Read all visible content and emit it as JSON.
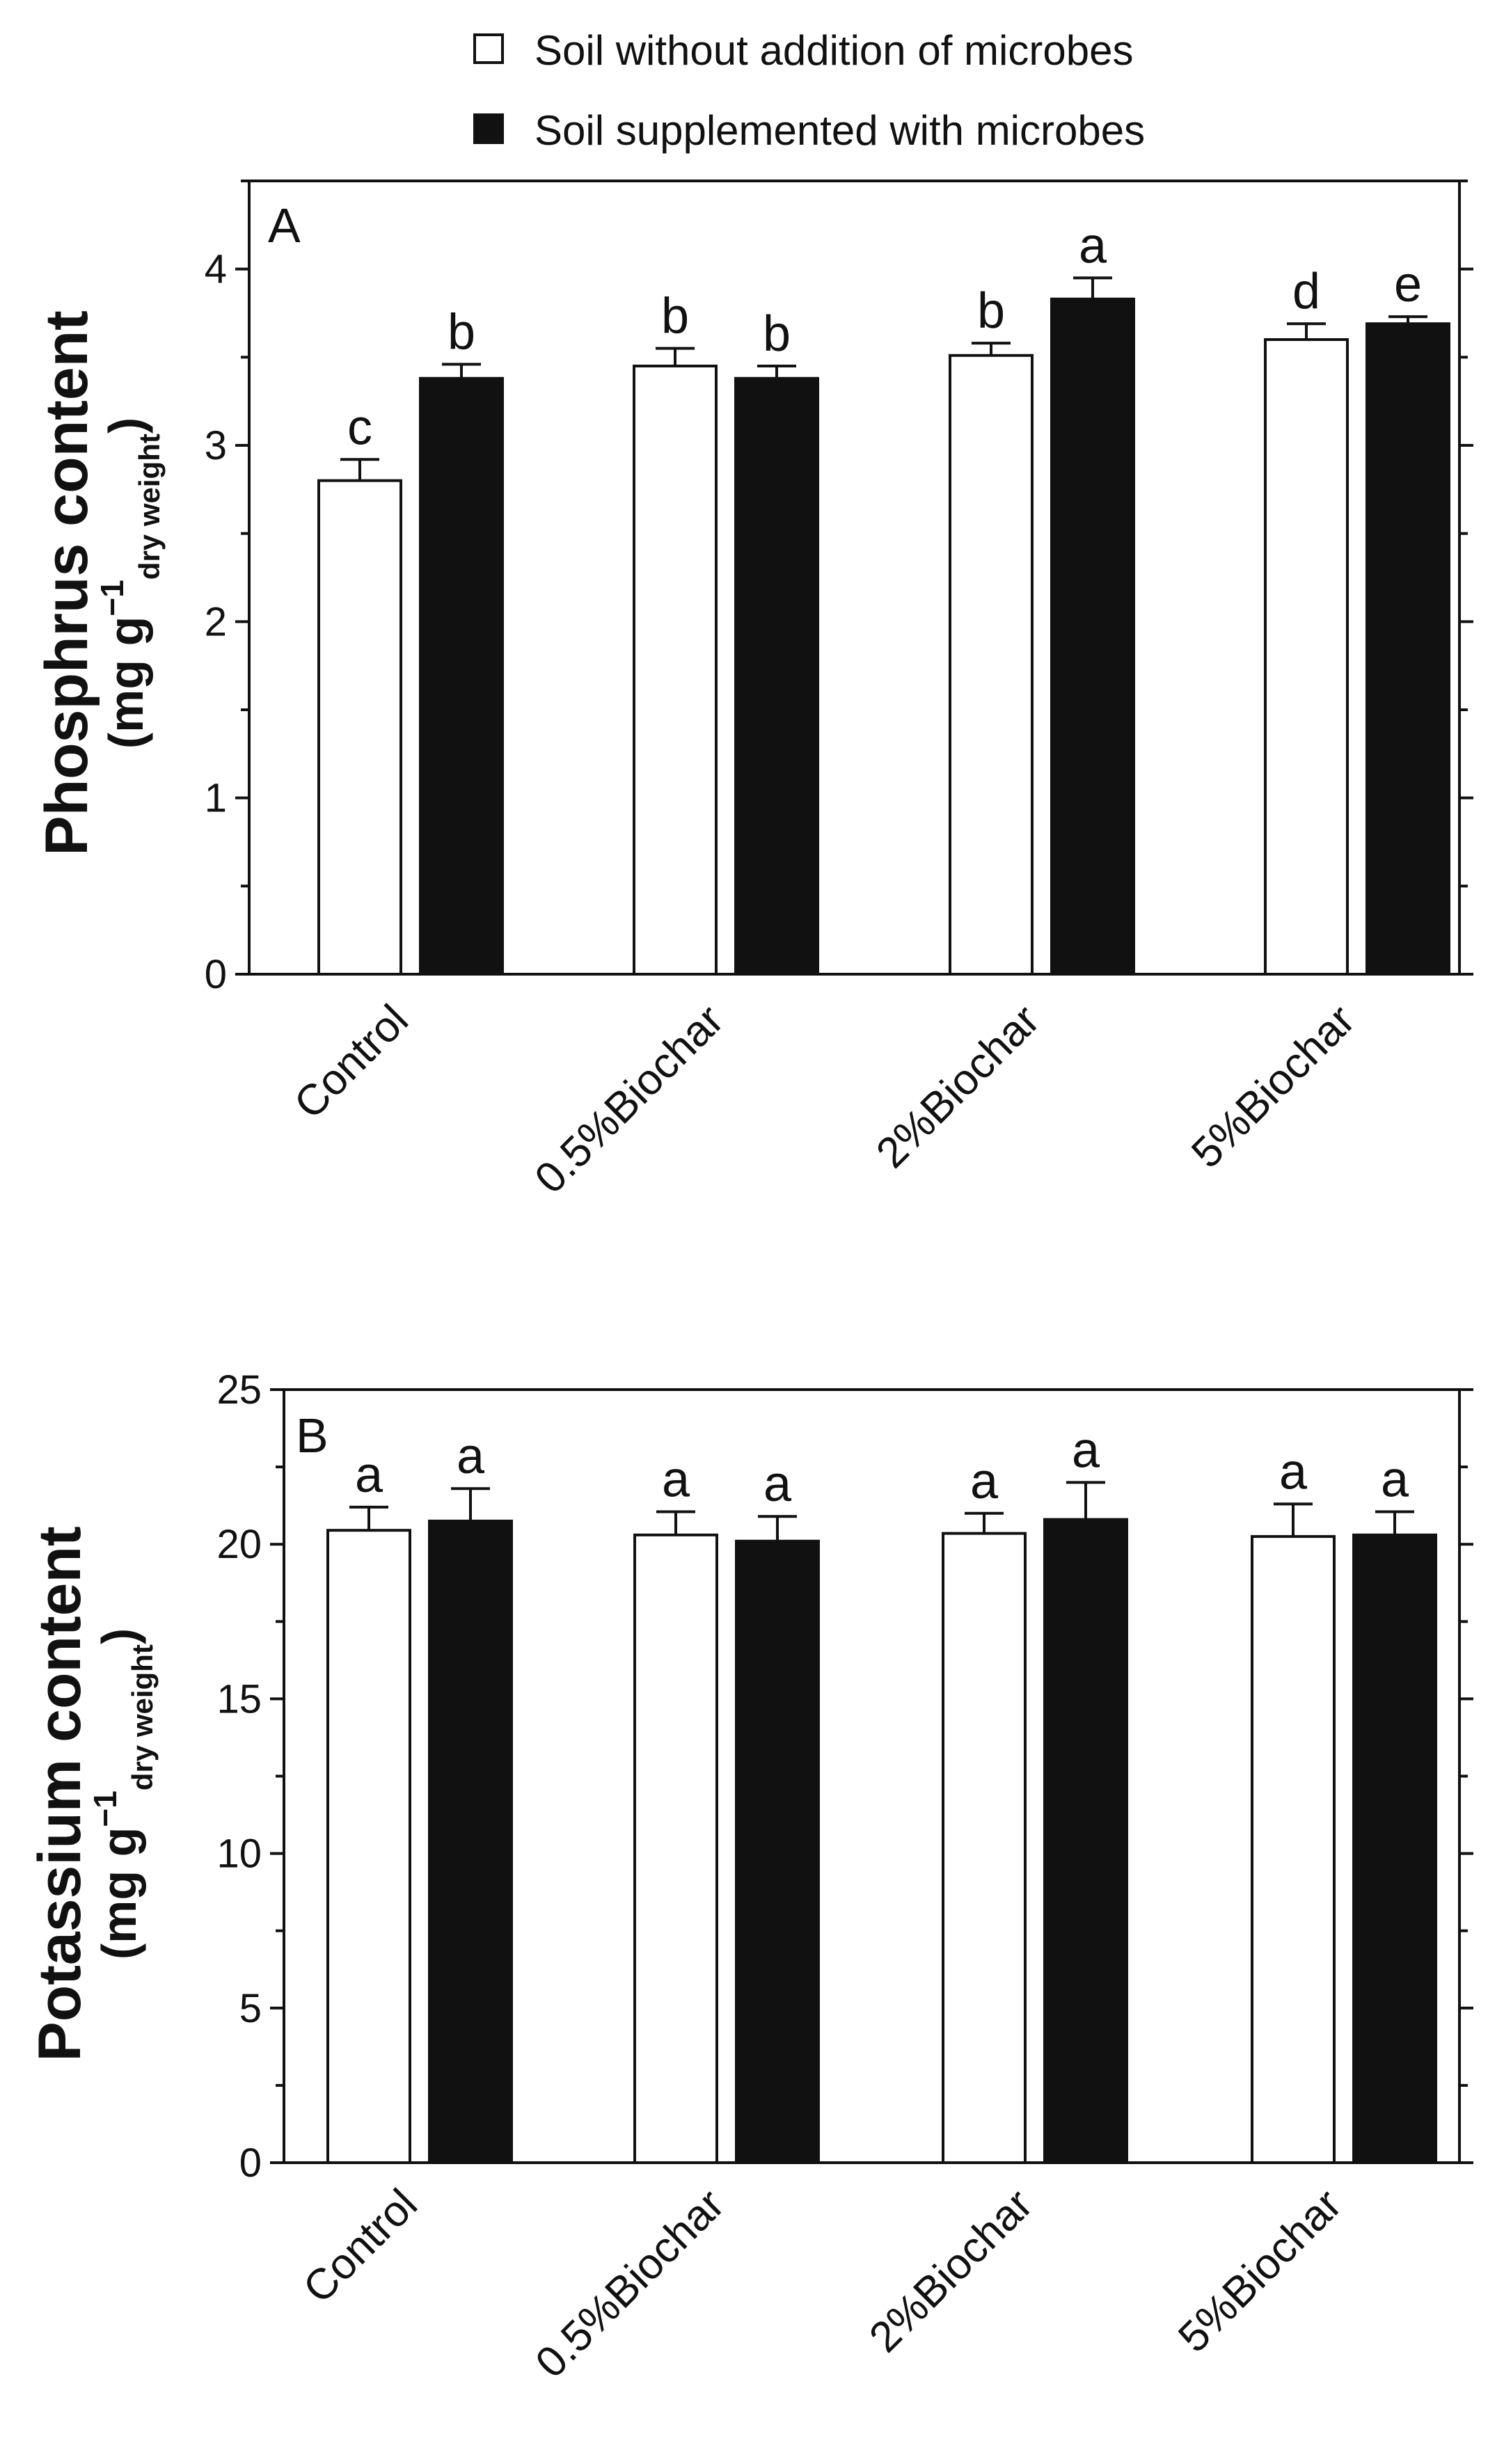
{
  "legend": [
    {
      "label": "Soil without addition of microbes",
      "fill": "#ffffff",
      "stroke": "#111111"
    },
    {
      "label": "Soil supplemented with microbes",
      "fill": "#111111",
      "stroke": "#111111"
    }
  ],
  "colors": {
    "axis": "#111111",
    "filled_bar": "#111111",
    "empty_bar": "#ffffff"
  },
  "chart_data": [
    {
      "type": "bar",
      "panel": "A",
      "categories": [
        "Control",
        "0.5%Biochar",
        "2%Biochar",
        "5%Biochar"
      ],
      "ylabel": {
        "line1": "Phosphrus content",
        "line2_main": "(mg g",
        "line2_sup": "−1",
        "line2_sub": "dry weight",
        "line2_close": ")"
      },
      "ylim": [
        0,
        4.5
      ],
      "yticks": [
        0,
        1,
        2,
        3,
        4
      ],
      "series": [
        {
          "name": "Soil without addition of microbes",
          "values": [
            2.8,
            3.45,
            3.51,
            3.6
          ],
          "errors": [
            0.12,
            0.1,
            0.07,
            0.09
          ],
          "letters": [
            "c",
            "b",
            "b",
            "d"
          ]
        },
        {
          "name": "Soil supplemented with microbes",
          "values": [
            3.38,
            3.38,
            3.83,
            3.69
          ],
          "errors": [
            0.08,
            0.07,
            0.12,
            0.04
          ],
          "letters": [
            "b",
            "b",
            "a",
            "e"
          ]
        }
      ]
    },
    {
      "type": "bar",
      "panel": "B",
      "categories": [
        "Control",
        "0.5%Biochar",
        "2%Biochar",
        "5%Biochar"
      ],
      "ylabel": {
        "line1": "Potassium content",
        "line2_main": "(mg g",
        "line2_sup": "−1",
        "line2_sub": "dry weight",
        "line2_close": ")"
      },
      "ylim": [
        0,
        25
      ],
      "yticks": [
        0,
        5,
        10,
        15,
        20,
        25
      ],
      "series": [
        {
          "name": "Soil without addition of microbes",
          "values": [
            20.45,
            20.3,
            20.35,
            20.25
          ],
          "errors": [
            0.75,
            0.75,
            0.65,
            1.05
          ],
          "letters": [
            "a",
            "a",
            "a",
            "a"
          ]
        },
        {
          "name": "Soil supplemented with microbes",
          "values": [
            20.75,
            20.1,
            20.8,
            20.3
          ],
          "errors": [
            1.05,
            0.8,
            1.2,
            0.75
          ],
          "letters": [
            "a",
            "a",
            "a",
            "a"
          ]
        }
      ]
    }
  ]
}
